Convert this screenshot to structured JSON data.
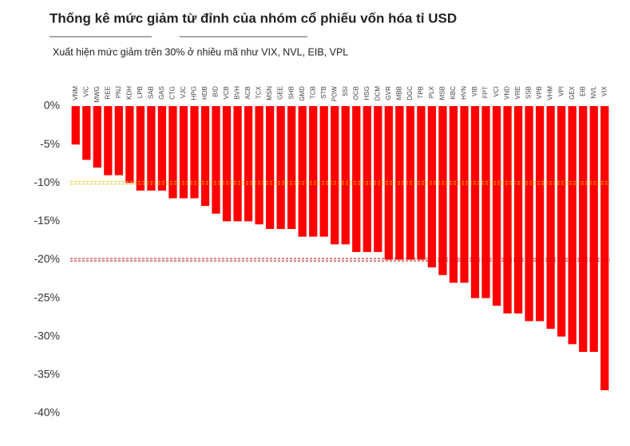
{
  "chart_data": {
    "type": "bar",
    "title": "Thống kê mức giảm từ đỉnh của nhóm cổ phiếu vốn hóa tỉ USD",
    "subtitle": "Xuất hiện mức giảm trên 30% ở nhiều mã như VIX, NVL, EIB, VPL",
    "categories": [
      "VNM",
      "VIC",
      "MWG",
      "REE",
      "PNJ",
      "KDH",
      "LPB",
      "SAB",
      "GAS",
      "CTG",
      "VJC",
      "HPG",
      "HDB",
      "BID",
      "VCB",
      "BVH",
      "ACB",
      "TCX",
      "MSN",
      "GEE",
      "SHB",
      "GMD",
      "TCB",
      "STB",
      "POW",
      "SSI",
      "OCB",
      "HSG",
      "DCM",
      "GVR",
      "MBB",
      "DGC",
      "TPB",
      "PLX",
      "MSB",
      "KBC",
      "HVN",
      "VIB",
      "FPT",
      "VCI",
      "VND",
      "VRE",
      "SSB",
      "VPB",
      "VHM",
      "VPI",
      "GEX",
      "EIB",
      "NVL",
      "VIX"
    ],
    "values": [
      -5,
      -7,
      -8,
      -9,
      -9,
      -10,
      -11,
      -11,
      -11,
      -12,
      -12,
      -12,
      -13,
      -14,
      -15,
      -15,
      -15,
      -15.4,
      -16,
      -16,
      -16,
      -17,
      -17,
      -17,
      -18,
      -18,
      -19,
      -19,
      -19,
      -20,
      -20,
      -20,
      -20,
      -21,
      -22,
      -23,
      -23,
      -25,
      -25,
      -26,
      -27,
      -27,
      -28,
      -28,
      -29,
      -30,
      -31,
      -32,
      -32,
      -37
    ],
    "color": "#ff0000",
    "ylim": [
      0,
      -40
    ],
    "yticks": [
      {
        "value": 0,
        "label": "0%"
      },
      {
        "value": -5,
        "label": "-5%"
      },
      {
        "value": -10,
        "label": "-10%"
      },
      {
        "value": -15,
        "label": "-15%"
      },
      {
        "value": -20,
        "label": "-20%"
      },
      {
        "value": -25,
        "label": "-25%"
      },
      {
        "value": -30,
        "label": "-30%"
      },
      {
        "value": -35,
        "label": "-35%"
      },
      {
        "value": -40,
        "label": "-40%"
      }
    ],
    "reference_lines": [
      {
        "value": -10,
        "color": "#e8c000"
      },
      {
        "value": -20,
        "color": "#d00000"
      }
    ]
  }
}
